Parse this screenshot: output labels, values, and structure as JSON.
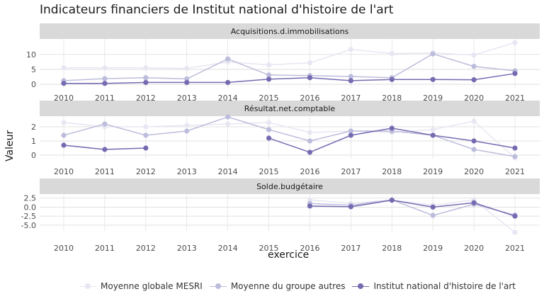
{
  "title": "Indicateurs financiers de Institut national d'histoire de l'art",
  "xlabel": "exercice",
  "ylabel": "Valeur",
  "colors": {
    "mesri": "#e8e6f2",
    "groupe": "#bcbddc",
    "institut": "#756bb1",
    "strip": "#d9d9d9",
    "grid": "#d9d9d9"
  },
  "legend": [
    {
      "label": "Moyenne globale MESRI",
      "key": "mesri"
    },
    {
      "label": "Moyenne du groupe autres",
      "key": "groupe"
    },
    {
      "label": "Institut national d'histoire de l'art",
      "key": "institut"
    }
  ],
  "chart_data": [
    {
      "type": "line",
      "facet": "Acquisitions.d.immobilisations",
      "x": [
        2010,
        2011,
        2012,
        2013,
        2014,
        2015,
        2016,
        2017,
        2018,
        2019,
        2020,
        2021
      ],
      "yticks": [
        "0",
        "5",
        "10"
      ],
      "ylim": [
        -1.2,
        15.2
      ],
      "series": [
        {
          "name": "Moyenne globale MESRI",
          "key": "mesri",
          "values": [
            5.5,
            5.5,
            5.5,
            5.3,
            7.5,
            6.5,
            7.2,
            11.7,
            10.3,
            10.5,
            9.8,
            14
          ]
        },
        {
          "name": "Moyenne du groupe autres",
          "key": "groupe",
          "values": [
            1.2,
            1.9,
            2.2,
            1.8,
            8.5,
            3.1,
            2.9,
            2.6,
            2.2,
            10.2,
            6,
            4.5
          ]
        },
        {
          "name": "Institut national d'histoire de l'art",
          "key": "institut",
          "values": [
            0.3,
            0.3,
            0.6,
            0.6,
            0.6,
            1.7,
            2.2,
            1.2,
            1.6,
            1.6,
            1.5,
            3.6
          ]
        }
      ]
    },
    {
      "type": "line",
      "facet": "Résultat.net.comptable",
      "x": [
        2010,
        2011,
        2012,
        2013,
        2014,
        2015,
        2016,
        2017,
        2018,
        2019,
        2020,
        2021
      ],
      "yticks": [
        "0",
        "1",
        "2"
      ],
      "ylim": [
        -0.25,
        2.75
      ],
      "series": [
        {
          "name": "Moyenne globale MESRI",
          "key": "mesri",
          "values": [
            2.3,
            2,
            2,
            2.1,
            2.2,
            2.3,
            1.6,
            1.7,
            1.6,
            1.8,
            2.4,
            -0.2
          ]
        },
        {
          "name": "Moyenne du groupe autres",
          "key": "groupe",
          "values": [
            1.4,
            2.2,
            1.4,
            1.7,
            2.7,
            1.8,
            1,
            1.7,
            1.7,
            1.4,
            0.4,
            -0.1
          ]
        },
        {
          "name": "Institut national d'histoire de l'art",
          "key": "institut",
          "values": [
            0.7,
            0.4,
            0.5,
            null,
            null,
            1.2,
            0.2,
            1.4,
            1.9,
            1.4,
            1,
            0.5
          ]
        }
      ]
    },
    {
      "type": "line",
      "facet": "Solde.budgétaire",
      "x": [
        2010,
        2011,
        2012,
        2013,
        2014,
        2015,
        2016,
        2017,
        2018,
        2019,
        2020,
        2021
      ],
      "yticks": [
        "2.5",
        "0.0",
        "-2.5",
        "-5.0"
      ],
      "ylim": [
        -6.6,
        3.6
      ],
      "series": [
        {
          "name": "Moyenne globale MESRI",
          "key": "mesri",
          "values": [
            null,
            null,
            null,
            null,
            null,
            null,
            2,
            1,
            2,
            0.5,
            2,
            -7
          ]
        },
        {
          "name": "Moyenne du groupe autres",
          "key": "groupe",
          "values": [
            null,
            null,
            null,
            null,
            null,
            null,
            1,
            0.5,
            2,
            -2.3,
            0.8,
            -2.2
          ]
        },
        {
          "name": "Institut national d'histoire de l'art",
          "key": "institut",
          "values": [
            null,
            null,
            null,
            null,
            null,
            null,
            0.3,
            0.1,
            1.9,
            0,
            1.2,
            -2.5
          ]
        }
      ]
    }
  ]
}
